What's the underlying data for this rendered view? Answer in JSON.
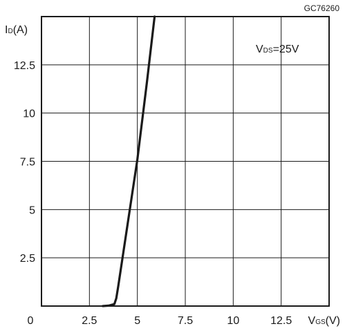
{
  "figure_code": "GC76260",
  "chart_data": {
    "type": "line",
    "ylabel": {
      "main": "I",
      "sub": "D",
      "unit": "(A)"
    },
    "xlabel": {
      "main": "V",
      "sub": "GS",
      "unit": "(V)"
    },
    "annotation": {
      "main": "V",
      "sub": "DS",
      "rest": "=25V"
    },
    "xlim": [
      0,
      15
    ],
    "ylim": [
      0,
      15
    ],
    "xticks": [
      {
        "value": 0,
        "label": "0"
      },
      {
        "value": 2.5,
        "label": "2.5"
      },
      {
        "value": 5,
        "label": "5"
      },
      {
        "value": 7.5,
        "label": "7.5"
      },
      {
        "value": 10,
        "label": "10"
      },
      {
        "value": 12.5,
        "label": "12.5"
      }
    ],
    "yticks": [
      {
        "value": 2.5,
        "label": "2.5"
      },
      {
        "value": 5,
        "label": "5"
      },
      {
        "value": 7.5,
        "label": "7.5"
      },
      {
        "value": 10,
        "label": "10"
      },
      {
        "value": 12.5,
        "label": "12.5"
      }
    ],
    "grid": true,
    "series": [
      {
        "x": [
          3.2,
          3.5,
          3.8,
          3.9,
          4.0,
          4.5,
          5.0,
          5.5,
          5.9
        ],
        "y": [
          0,
          0.02,
          0.1,
          0.4,
          1.0,
          4.3,
          7.6,
          11.6,
          15
        ]
      }
    ]
  }
}
